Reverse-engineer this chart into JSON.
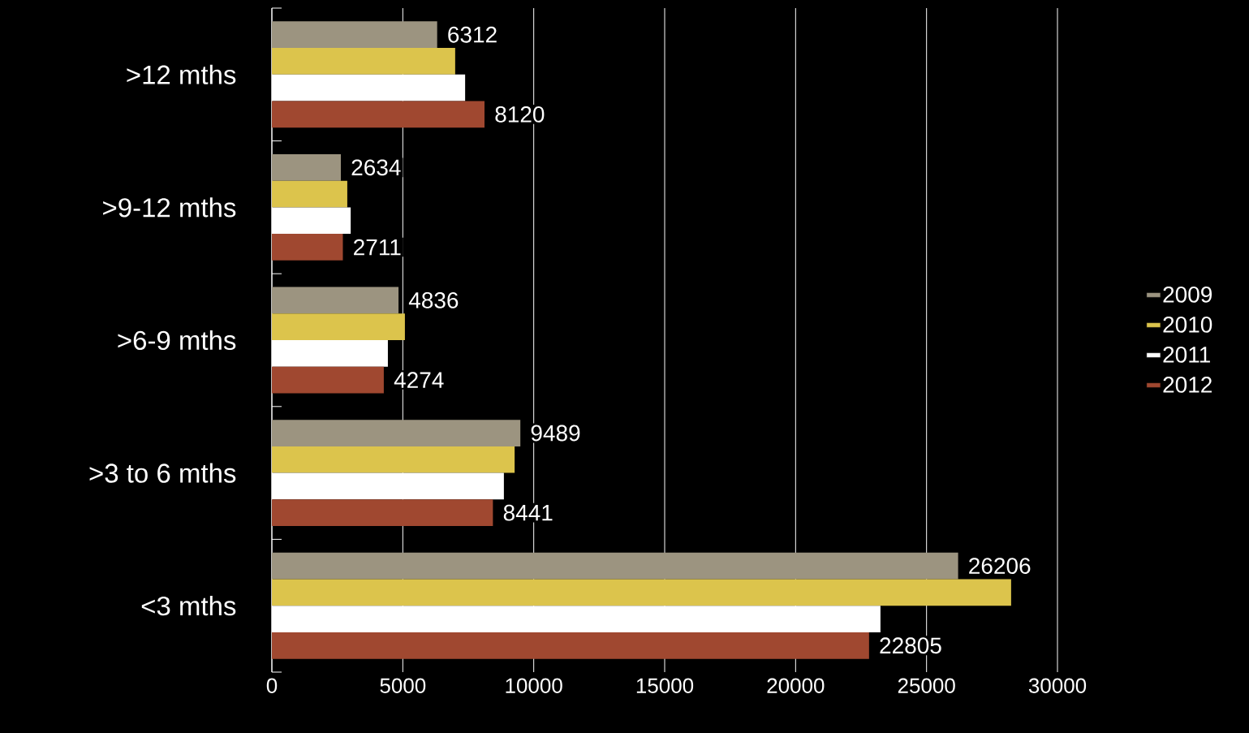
{
  "chart_data": {
    "type": "bar",
    "orientation": "horizontal",
    "categories": [
      ">12 mths",
      ">9-12 mths",
      ">6-9 mths",
      ">3 to 6 mths",
      "<3 mths"
    ],
    "series": [
      {
        "name": "2009",
        "color": "#9c9480",
        "values": [
          6312,
          2634,
          4836,
          9489,
          26206
        ],
        "value_labels": [
          "6312",
          "2634",
          "4836",
          "9489",
          "26206"
        ]
      },
      {
        "name": "2010",
        "color": "#dcc44c",
        "values": [
          7000,
          2880,
          5080,
          9270,
          28230
        ]
      },
      {
        "name": "2011",
        "color": "#ffffff",
        "values": [
          7380,
          3010,
          4430,
          8860,
          23240
        ]
      },
      {
        "name": "2012",
        "color": "#a04830",
        "values": [
          8120,
          2711,
          4274,
          8441,
          22805
        ],
        "value_labels": [
          "8120",
          "2711",
          "4274",
          "8441",
          "22805"
        ]
      }
    ],
    "xlim": [
      0,
      30000
    ],
    "xticks": [
      0,
      5000,
      10000,
      15000,
      20000,
      25000,
      30000
    ],
    "grid": "x",
    "legend": "right"
  }
}
